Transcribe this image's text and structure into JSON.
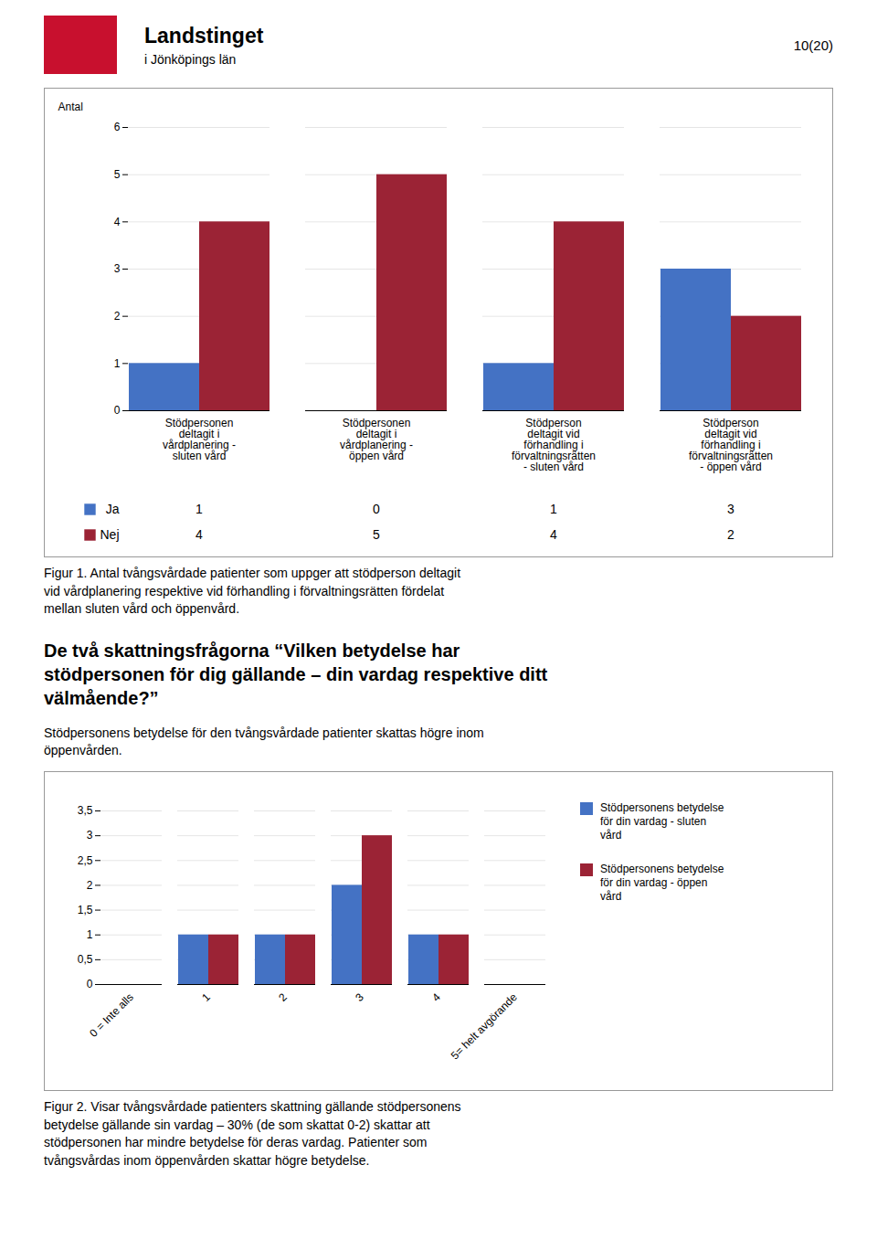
{
  "annotations": [
    "Landstinget",
    "i Jönköpings län",
    "10(20)"
  ],
  "chart_data": [
    {
      "type": "bar",
      "categories": [
        "Stödpersonen\ndeltagit i\nvårdplanering -\nsluten vård",
        "Stödpersonen\ndeltagit i\nvårdplanering -\nöppen vård",
        "Stödperson\ndeltagit vid\nförhandling i\nförvaltningsrätten\n- sluten vård",
        "Stödperson\ndeltagit vid\nförhandling i\nförvaltningsrätten\n- öppen vård"
      ],
      "series": [
        {
          "name": "Ja",
          "color": "#4472C4",
          "values": [
            1,
            0,
            1,
            3
          ]
        },
        {
          "name": "Nej",
          "color": "#9B2335",
          "values": [
            4,
            5,
            4,
            2
          ]
        }
      ],
      "ylabel": "Antal",
      "ylim": [
        0,
        6
      ],
      "yticks": [
        0,
        1,
        2,
        3,
        4,
        5,
        6
      ],
      "grid": true,
      "legend": "bottom",
      "annotations": [
        "Figur 1. Antal tvångsvårdade patienter som uppger att stödperson deltagit\nvid  vårdplanering respektive vid förhandling i förvaltningsrätten fördelat\nmellan sluten vård och öppenvård."
      ]
    },
    {
      "type": "bar",
      "title": "De två skattningsfrågorna “Vilken betydelse har\nstödpersonen för dig gällande – din vardag respektive ditt\nvälmående?”",
      "subtitle": "Stödpersonens betydelse för den tvångsvårdade patienter skattas högre inom\nöppenvården.",
      "categories": [
        "0 = Inte alls",
        "1",
        "2",
        "3",
        "4",
        "5= helt avgörande"
      ],
      "series": [
        {
          "name": "Stödpersonens betydelse\nför din vardag - sluten\nvård",
          "color": "#4472C4",
          "values": [
            0,
            1,
            1,
            2,
            1,
            0
          ]
        },
        {
          "name": "Stödpersonens betydelse\nför din vardag - öppen\nvård",
          "color": "#9B2335",
          "values": [
            0,
            1,
            1,
            3,
            1,
            0
          ]
        }
      ],
      "ylim": [
        0,
        3.5
      ],
      "yticks": [
        0,
        {
          "value": 0.5,
          "label": "0,5"
        },
        1,
        {
          "value": 1.5,
          "label": "1,5"
        },
        2,
        {
          "value": 2.5,
          "label": "2,5"
        },
        3,
        {
          "value": 3.5,
          "label": "3,5"
        }
      ],
      "grid": true,
      "legend": "right",
      "annotations": [
        "Figur 2. Visar tvångsvårdade patienters skattning gällande stödpersonens\nbetydelse gällande sin vardag – 30% (de som skattat 0-2) skattar att\nstödpersonen har mindre betydelse för deras vardag. Patienter som\ntvångsvårdas inom öppenvården skattar högre betydelse."
      ]
    }
  ]
}
